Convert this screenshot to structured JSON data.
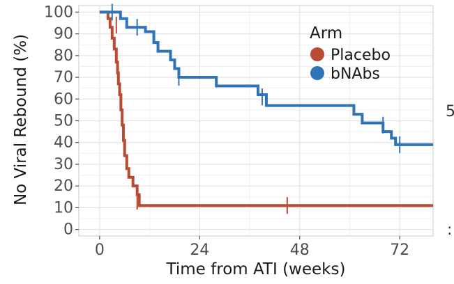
{
  "chart_data": {
    "type": "line",
    "subtype": "kaplan-meier-step",
    "title": "",
    "xlabel": "Time from ATI (weeks)",
    "ylabel": "No Viral Rebound (%)",
    "xlim": [
      -5,
      80
    ],
    "ylim": [
      -3,
      103
    ],
    "xticks": [
      0,
      24,
      48,
      72
    ],
    "yticks": [
      0,
      10,
      20,
      30,
      40,
      50,
      60,
      70,
      80,
      90,
      100
    ],
    "grid": true,
    "legend": {
      "title": "Arm",
      "position": "top-right"
    },
    "series": [
      {
        "name": "Placebo",
        "color": "#b94a34",
        "steps": [
          [
            0,
            100
          ],
          [
            2,
            97
          ],
          [
            2.5,
            93
          ],
          [
            3,
            88
          ],
          [
            3.5,
            83
          ],
          [
            4,
            77
          ],
          [
            4.3,
            72
          ],
          [
            4.5,
            67
          ],
          [
            4.8,
            62
          ],
          [
            5.1,
            55
          ],
          [
            5.4,
            48
          ],
          [
            5.7,
            41
          ],
          [
            6,
            34
          ],
          [
            6.5,
            28
          ],
          [
            7,
            24
          ],
          [
            8,
            20
          ],
          [
            9,
            16
          ],
          [
            9.5,
            11
          ],
          [
            80,
            11
          ]
        ],
        "censored": [
          [
            4,
            94
          ],
          [
            9,
            13
          ],
          [
            45,
            11
          ]
        ]
      },
      {
        "name": "bNAbs",
        "color": "#2f73b8",
        "steps": [
          [
            0,
            100
          ],
          [
            5,
            97
          ],
          [
            6.5,
            93
          ],
          [
            11,
            91
          ],
          [
            13,
            86
          ],
          [
            14,
            82
          ],
          [
            17,
            78
          ],
          [
            18,
            74
          ],
          [
            19,
            70
          ],
          [
            28,
            66
          ],
          [
            38,
            62
          ],
          [
            40,
            57
          ],
          [
            61,
            53
          ],
          [
            63,
            49
          ],
          [
            68,
            45
          ],
          [
            70,
            42
          ],
          [
            71,
            39
          ],
          [
            80,
            39
          ]
        ],
        "censored": [
          [
            3,
            100
          ],
          [
            9,
            93
          ],
          [
            19,
            70
          ],
          [
            39,
            61
          ],
          [
            68,
            48
          ],
          [
            72,
            39
          ]
        ]
      }
    ]
  },
  "edge_marks": [
    "5",
    ":"
  ]
}
